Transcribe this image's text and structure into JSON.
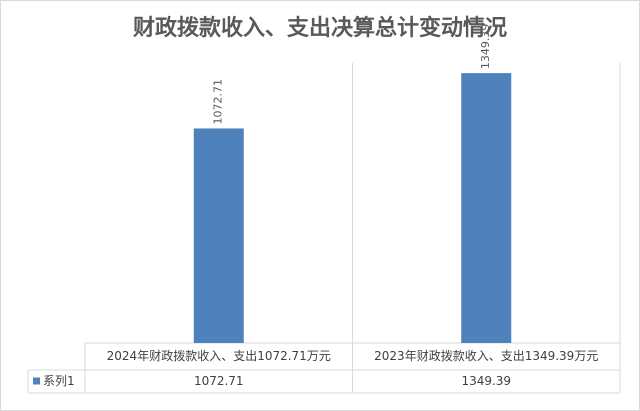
{
  "chart_data": {
    "type": "bar",
    "title": "财政拨款收入、支出决算总计变动情况",
    "categories": [
      "2024年财政拨款收入、支出1072.71万元",
      "2023年财政拨款收入、支出1349.39万元"
    ],
    "series": [
      {
        "name": "系列1",
        "color": "#4f81bd",
        "values": [
          1072.71,
          1349.39
        ]
      }
    ],
    "ylim": [
      0,
      1400
    ],
    "data_table": true
  }
}
